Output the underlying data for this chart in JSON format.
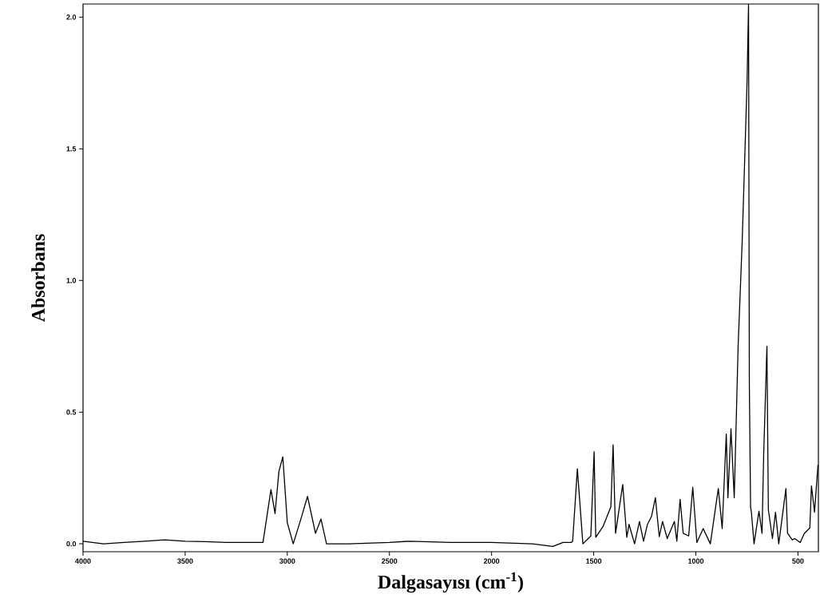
{
  "chart_data": {
    "type": "line",
    "xlabel": "Dalgasayısı (cm$^{-1}$)",
    "ylabel": "Absorbans",
    "xlim": [
      4000,
      400
    ],
    "ylim": [
      -0.03,
      2.05
    ],
    "xticks": [
      4000,
      3500,
      3000,
      2500,
      2000,
      1500,
      1000,
      500
    ],
    "yticks": [
      {
        "value": 0,
        "label": "0.0"
      },
      {
        "value": 0.5,
        "label": "0.5"
      },
      {
        "value": 1,
        "label": "1.0"
      },
      {
        "value": 1.5,
        "label": "1.5"
      },
      {
        "value": 2,
        "label": "2.0"
      }
    ],
    "grid": false,
    "marker": "none",
    "line_style": "solid",
    "series": [
      {
        "color": "#000000",
        "x": [
          4000,
          3900,
          3800,
          3700,
          3600,
          3500,
          3400,
          3300,
          3200,
          3119,
          3080,
          3060,
          3041,
          3022,
          3000,
          2971,
          2936,
          2901,
          2862,
          2835,
          2808,
          2700,
          2500,
          2400,
          2200,
          2000,
          1800,
          1700,
          1650,
          1610,
          1603,
          1580,
          1553,
          1514,
          1498,
          1490,
          1455,
          1416,
          1405,
          1393,
          1358,
          1338,
          1327,
          1300,
          1276,
          1256,
          1237,
          1217,
          1198,
          1179,
          1163,
          1140,
          1105,
          1093,
          1077,
          1062,
          1035,
          1015,
          995,
          964,
          929,
          890,
          871,
          851,
          843,
          828,
          812,
          793,
          773,
          749,
          742,
          738,
          732,
          728,
          715,
          691,
          676,
          668,
          652,
          645,
          625,
          610,
          594,
          559,
          551,
          528,
          516,
          489,
          469,
          442,
          434,
          419,
          402
        ],
        "values": [
          0.01,
          0.0,
          0.005,
          0.01,
          0.015,
          0.01,
          0.008,
          0.005,
          0.005,
          0.005,
          0.206,
          0.115,
          0.275,
          0.33,
          0.08,
          0.0,
          0.088,
          0.18,
          0.04,
          0.094,
          0.0,
          0.0,
          0.005,
          0.01,
          0.005,
          0.005,
          0.0,
          -0.01,
          0.005,
          0.005,
          0.01,
          0.285,
          0.0,
          0.03,
          0.35,
          0.025,
          0.065,
          0.14,
          0.376,
          0.04,
          0.225,
          0.025,
          0.074,
          0.0,
          0.085,
          0.01,
          0.074,
          0.104,
          0.175,
          0.027,
          0.085,
          0.02,
          0.085,
          0.01,
          0.169,
          0.04,
          0.03,
          0.215,
          0.005,
          0.058,
          0.0,
          0.21,
          0.058,
          0.417,
          0.175,
          0.437,
          0.175,
          0.75,
          1.15,
          1.76,
          2.05,
          0.6,
          0.14,
          0.12,
          0.0,
          0.124,
          0.04,
          0.336,
          0.75,
          0.13,
          0.02,
          0.12,
          0.0,
          0.21,
          0.04,
          0.015,
          0.02,
          0.005,
          0.04,
          0.06,
          0.22,
          0.12,
          0.3
        ]
      }
    ]
  }
}
